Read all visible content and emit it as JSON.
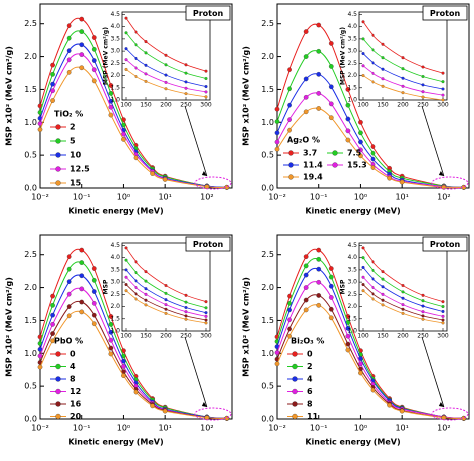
{
  "chart_data": [
    {
      "type": "line",
      "log_x": true,
      "legend_columns": 1,
      "xlabel": "Kinetic energy (MeV)",
      "ylabel": "MSP x10² (MeV cm²/g)",
      "annotation": "Proton",
      "legend_title": "TiO₂ %",
      "xlim": [
        0.01,
        400
      ],
      "xticks": [
        {
          "value": 0.01,
          "label": "10⁻²"
        },
        {
          "value": 0.1,
          "label": "10⁻¹"
        },
        {
          "value": 1,
          "label": "10⁰"
        },
        {
          "value": 10,
          "label": "10¹"
        },
        {
          "value": 100,
          "label": "10²"
        }
      ],
      "ylim": [
        0,
        2.8
      ],
      "yticks": [
        {
          "value": 0,
          "label": "0.0"
        },
        0.5,
        {
          "value": 1,
          "label": "1.0"
        },
        1.5,
        {
          "value": 2,
          "label": "2.0"
        },
        2.5
      ],
      "x": [
        0.01,
        0.02,
        0.05,
        0.1,
        0.2,
        0.5,
        1,
        2,
        5,
        10,
        100,
        300
      ],
      "series": [
        {
          "name": "2",
          "color": "#e8201e",
          "values": [
            1.25,
            1.87,
            2.47,
            2.57,
            2.29,
            1.56,
            1.04,
            0.65,
            0.31,
            0.18,
            0.03,
            0.01
          ]
        },
        {
          "name": "5",
          "color": "#22cc22",
          "values": [
            1.15,
            1.73,
            2.28,
            2.38,
            2.11,
            1.44,
            0.96,
            0.6,
            0.29,
            0.17,
            0.03,
            0.01
          ]
        },
        {
          "name": "10",
          "color": "#1a2ee6",
          "values": [
            1.06,
            1.58,
            2.09,
            2.18,
            1.94,
            1.32,
            0.88,
            0.55,
            0.26,
            0.15,
            0.03,
            0.01
          ]
        },
        {
          "name": "12.5",
          "color": "#e020e0",
          "values": [
            0.98,
            1.48,
            1.95,
            2.03,
            1.8,
            1.23,
            0.82,
            0.51,
            0.25,
            0.14,
            0.02,
            0.01
          ]
        },
        {
          "name": "15",
          "color": "#f0962a",
          "values": [
            0.89,
            1.33,
            1.76,
            1.83,
            1.63,
            1.11,
            0.74,
            0.46,
            0.22,
            0.13,
            0.02,
            0.01
          ]
        }
      ],
      "inset": {
        "ylabel": "MSP (MeV cm²/g)",
        "xlim": [
          90,
          310
        ],
        "xticks": [
          100,
          150,
          200,
          250,
          300
        ],
        "ylim": [
          1,
          4.6
        ],
        "yticks": [
          {
            "value": 1,
            "label": "1.0"
          },
          1.5,
          {
            "value": 2,
            "label": "2.0"
          },
          2.5,
          {
            "value": 3,
            "label": "3.0"
          },
          3.5,
          {
            "value": 4,
            "label": "4.0"
          },
          4.5
        ],
        "x": [
          100,
          125,
          150,
          200,
          250,
          300
        ],
        "series": [
          {
            "values": [
              4.35,
              3.78,
              3.39,
              2.83,
              2.44,
              2.18
            ]
          },
          {
            "values": [
              3.75,
              3.26,
              2.93,
              2.44,
              2.1,
              1.88
            ]
          },
          {
            "values": [
              3.1,
              2.7,
              2.42,
              2.02,
              1.74,
              1.55
            ]
          },
          {
            "values": [
              2.65,
              2.31,
              2.07,
              1.72,
              1.48,
              1.33
            ]
          },
          {
            "values": [
              2.25,
              1.96,
              1.76,
              1.46,
              1.26,
              1.13
            ]
          }
        ]
      }
    },
    {
      "type": "line",
      "log_x": true,
      "legend_columns": 2,
      "xlabel": "Kinetic energy (MeV)",
      "ylabel": "MSP x10² (MeV cm²/g)",
      "annotation": "Proton",
      "legend_title": "Ag₂O %",
      "xlim": [
        0.01,
        400
      ],
      "xticks": [
        {
          "value": 0.01,
          "label": "10⁻²"
        },
        {
          "value": 0.1,
          "label": "10⁻¹"
        },
        {
          "value": 1,
          "label": "10⁰"
        },
        {
          "value": 10,
          "label": "10¹"
        },
        {
          "value": 100,
          "label": "10²"
        }
      ],
      "ylim": [
        0,
        2.8
      ],
      "yticks": [
        {
          "value": 0,
          "label": "0.0"
        },
        0.5,
        {
          "value": 1,
          "label": "1.0"
        },
        1.5,
        {
          "value": 2,
          "label": "2.0"
        },
        2.5
      ],
      "x": [
        0.01,
        0.02,
        0.05,
        0.1,
        0.2,
        0.5,
        1,
        2,
        5,
        10,
        100,
        300
      ],
      "series": [
        {
          "name": "3.7",
          "color": "#e8201e",
          "values": [
            1.2,
            1.8,
            2.38,
            2.48,
            2.2,
            1.5,
            1.0,
            0.63,
            0.3,
            0.18,
            0.03,
            0.01
          ]
        },
        {
          "name": "7.5",
          "color": "#22cc22",
          "values": [
            1.01,
            1.51,
            2.0,
            2.08,
            1.85,
            1.26,
            0.84,
            0.53,
            0.25,
            0.15,
            0.03,
            0.01
          ]
        },
        {
          "name": "11.4",
          "color": "#1a2ee6",
          "values": [
            0.84,
            1.26,
            1.66,
            1.73,
            1.54,
            1.05,
            0.7,
            0.44,
            0.21,
            0.12,
            0.02,
            0.01
          ]
        },
        {
          "name": "15.3",
          "color": "#e020e0",
          "values": [
            0.7,
            1.04,
            1.38,
            1.44,
            1.28,
            0.87,
            0.58,
            0.36,
            0.17,
            0.1,
            0.02,
            0.01
          ]
        },
        {
          "name": "19.4",
          "color": "#f0962a",
          "values": [
            0.59,
            0.88,
            1.16,
            1.21,
            1.07,
            0.73,
            0.49,
            0.31,
            0.15,
            0.09,
            0.01,
            0.01
          ]
        }
      ],
      "inset": {
        "ylabel": "MSP (MeV cm²/g)",
        "xlim": [
          90,
          310
        ],
        "xticks": [
          100,
          150,
          200,
          250,
          300
        ],
        "ylim": [
          1,
          4.6
        ],
        "yticks": [
          {
            "value": 1,
            "label": "1.0"
          },
          1.5,
          {
            "value": 2,
            "label": "2.0"
          },
          2.5,
          {
            "value": 3,
            "label": "3.0"
          },
          3.5,
          {
            "value": 4,
            "label": "4.0"
          },
          4.5
        ],
        "x": [
          100,
          125,
          150,
          200,
          250,
          300
        ],
        "series": [
          {
            "values": [
              4.2,
              3.65,
              3.28,
              2.73,
              2.35,
              2.1
            ]
          },
          {
            "values": [
              3.5,
              3.05,
              2.73,
              2.28,
              1.96,
              1.75
            ]
          },
          {
            "values": [
              2.9,
              2.52,
              2.26,
              1.89,
              1.62,
              1.45
            ]
          },
          {
            "values": [
              2.4,
              2.09,
              1.87,
              1.56,
              1.34,
              1.2
            ]
          },
          {
            "values": [
              2.0,
              1.74,
              1.56,
              1.3,
              1.12,
              1.0
            ]
          }
        ]
      }
    },
    {
      "type": "line",
      "log_x": true,
      "legend_columns": 1,
      "xlabel": "Kinetic energy (MeV)",
      "ylabel": "MSP x10² (MeV cm²/g)",
      "annotation": "Proton",
      "legend_title": "PbO %",
      "xlim": [
        0.01,
        400
      ],
      "xticks": [
        {
          "value": 0.01,
          "label": "10⁻²"
        },
        {
          "value": 0.1,
          "label": "10⁻¹"
        },
        {
          "value": 1,
          "label": "10⁰"
        },
        {
          "value": 10,
          "label": "10¹"
        },
        {
          "value": 100,
          "label": "10²"
        }
      ],
      "ylim": [
        0,
        2.8
      ],
      "yticks": [
        {
          "value": 0,
          "label": "0.0"
        },
        0.5,
        {
          "value": 1,
          "label": "1.0"
        },
        1.5,
        {
          "value": 2,
          "label": "2.0"
        },
        2.5
      ],
      "x": [
        0.01,
        0.02,
        0.05,
        0.1,
        0.2,
        0.5,
        1,
        2,
        5,
        10,
        100,
        300
      ],
      "series": [
        {
          "name": "0",
          "color": "#e8201e",
          "values": [
            1.25,
            1.87,
            2.47,
            2.57,
            2.29,
            1.56,
            1.04,
            0.65,
            0.31,
            0.18,
            0.03,
            0.01
          ]
        },
        {
          "name": "4",
          "color": "#22cc22",
          "values": [
            1.15,
            1.73,
            2.28,
            2.38,
            2.11,
            1.44,
            0.96,
            0.6,
            0.29,
            0.17,
            0.03,
            0.01
          ]
        },
        {
          "name": "8",
          "color": "#1a2ee6",
          "values": [
            1.06,
            1.58,
            2.09,
            2.18,
            1.94,
            1.32,
            0.88,
            0.55,
            0.26,
            0.15,
            0.03,
            0.01
          ]
        },
        {
          "name": "12",
          "color": "#e020e0",
          "values": [
            0.96,
            1.44,
            1.9,
            1.98,
            1.76,
            1.2,
            0.8,
            0.5,
            0.24,
            0.14,
            0.02,
            0.01
          ]
        },
        {
          "name": "16",
          "color": "#8b1a1a",
          "values": [
            0.86,
            1.3,
            1.71,
            1.78,
            1.58,
            1.08,
            0.72,
            0.45,
            0.22,
            0.13,
            0.02,
            0.01
          ]
        },
        {
          "name": "20",
          "color": "#f0962a",
          "values": [
            0.79,
            1.19,
            1.57,
            1.63,
            1.45,
            0.99,
            0.66,
            0.41,
            0.2,
            0.12,
            0.02,
            0.01
          ]
        }
      ],
      "inset": {
        "ylabel": "MSP",
        "xlim": [
          90,
          310
        ],
        "xticks": [
          100,
          150,
          200,
          250,
          300
        ],
        "ylim": [
          1,
          4.6
        ],
        "yticks": [
          {
            "value": 1,
            "label": "1.0"
          },
          1.5,
          {
            "value": 2,
            "label": "2.0"
          },
          2.5,
          {
            "value": 3,
            "label": "3.0"
          },
          3.5,
          {
            "value": 4,
            "label": "4.0"
          },
          4.5
        ],
        "x": [
          100,
          125,
          150,
          200,
          250,
          300
        ],
        "series": [
          {
            "values": [
              4.4,
              3.83,
              3.43,
              2.86,
              2.46,
              2.2
            ]
          },
          {
            "values": [
              3.9,
              3.39,
              3.04,
              2.54,
              2.18,
              1.95
            ]
          },
          {
            "values": [
              3.5,
              3.05,
              2.73,
              2.28,
              1.96,
              1.75
            ]
          },
          {
            "values": [
              3.2,
              2.78,
              2.5,
              2.08,
              1.79,
              1.6
            ]
          },
          {
            "values": [
              2.9,
              2.52,
              2.26,
              1.89,
              1.62,
              1.45
            ]
          },
          {
            "values": [
              2.65,
              2.31,
              2.07,
              1.72,
              1.48,
              1.33
            ]
          }
        ]
      }
    },
    {
      "type": "line",
      "log_x": true,
      "legend_columns": 1,
      "xlabel": "Kinetic energy (MeV)",
      "ylabel": "MSP x10² (MeV cm²/g)",
      "annotation": "Proton",
      "legend_title": "Bi₂O₃ %",
      "xlim": [
        0.01,
        400
      ],
      "xticks": [
        {
          "value": 0.01,
          "label": "10⁻²"
        },
        {
          "value": 0.1,
          "label": "10⁻¹"
        },
        {
          "value": 1,
          "label": "10⁰"
        },
        {
          "value": 10,
          "label": "10¹"
        },
        {
          "value": 100,
          "label": "10²"
        }
      ],
      "ylim": [
        0,
        2.8
      ],
      "yticks": [
        {
          "value": 0,
          "label": "0.0"
        },
        0.5,
        {
          "value": 1,
          "label": "1.0"
        },
        1.5,
        {
          "value": 2,
          "label": "2.0"
        },
        2.5
      ],
      "x": [
        0.01,
        0.02,
        0.05,
        0.1,
        0.2,
        0.5,
        1,
        2,
        5,
        10,
        100,
        300
      ],
      "series": [
        {
          "name": "0",
          "color": "#e8201e",
          "values": [
            1.25,
            1.87,
            2.47,
            2.57,
            2.29,
            1.56,
            1.04,
            0.65,
            0.31,
            0.18,
            0.03,
            0.01
          ]
        },
        {
          "name": "2",
          "color": "#22cc22",
          "values": [
            1.18,
            1.76,
            2.33,
            2.43,
            2.16,
            1.47,
            0.98,
            0.61,
            0.29,
            0.17,
            0.03,
            0.01
          ]
        },
        {
          "name": "4",
          "color": "#1a2ee6",
          "values": [
            1.1,
            1.66,
            2.19,
            2.28,
            2.02,
            1.38,
            0.92,
            0.58,
            0.28,
            0.16,
            0.03,
            0.01
          ]
        },
        {
          "name": "6",
          "color": "#e020e0",
          "values": [
            1.01,
            1.51,
            2.0,
            2.08,
            1.85,
            1.26,
            0.84,
            0.53,
            0.25,
            0.15,
            0.03,
            0.01
          ]
        },
        {
          "name": "8",
          "color": "#8b1a1a",
          "values": [
            0.91,
            1.37,
            1.81,
            1.88,
            1.67,
            1.14,
            0.76,
            0.48,
            0.23,
            0.13,
            0.02,
            0.01
          ]
        },
        {
          "name": "11",
          "color": "#f0962a",
          "values": [
            0.84,
            1.26,
            1.66,
            1.73,
            1.54,
            1.05,
            0.7,
            0.44,
            0.21,
            0.12,
            0.02,
            0.01
          ]
        }
      ],
      "inset": {
        "ylabel": "MSP",
        "xlim": [
          90,
          310
        ],
        "xticks": [
          100,
          150,
          200,
          250,
          300
        ],
        "ylim": [
          1,
          4.6
        ],
        "yticks": [
          {
            "value": 1,
            "label": "1.0"
          },
          1.5,
          {
            "value": 2,
            "label": "2.0"
          },
          2.5,
          {
            "value": 3,
            "label": "3.0"
          },
          3.5,
          {
            "value": 4,
            "label": "4.0"
          },
          4.5
        ],
        "x": [
          100,
          125,
          150,
          200,
          250,
          300
        ],
        "series": [
          {
            "values": [
              4.4,
              3.83,
              3.43,
              2.86,
              2.46,
              2.2
            ]
          },
          {
            "values": [
              4.0,
              3.48,
              3.12,
              2.6,
              2.24,
              2.0
            ]
          },
          {
            "values": [
              3.6,
              3.13,
              2.81,
              2.34,
              2.02,
              1.8
            ]
          },
          {
            "values": [
              3.2,
              2.78,
              2.5,
              2.08,
              1.79,
              1.6
            ]
          },
          {
            "values": [
              2.9,
              2.52,
              2.26,
              1.89,
              1.62,
              1.45
            ]
          },
          {
            "values": [
              2.65,
              2.31,
              2.07,
              1.72,
              1.48,
              1.33
            ]
          }
        ]
      }
    }
  ]
}
